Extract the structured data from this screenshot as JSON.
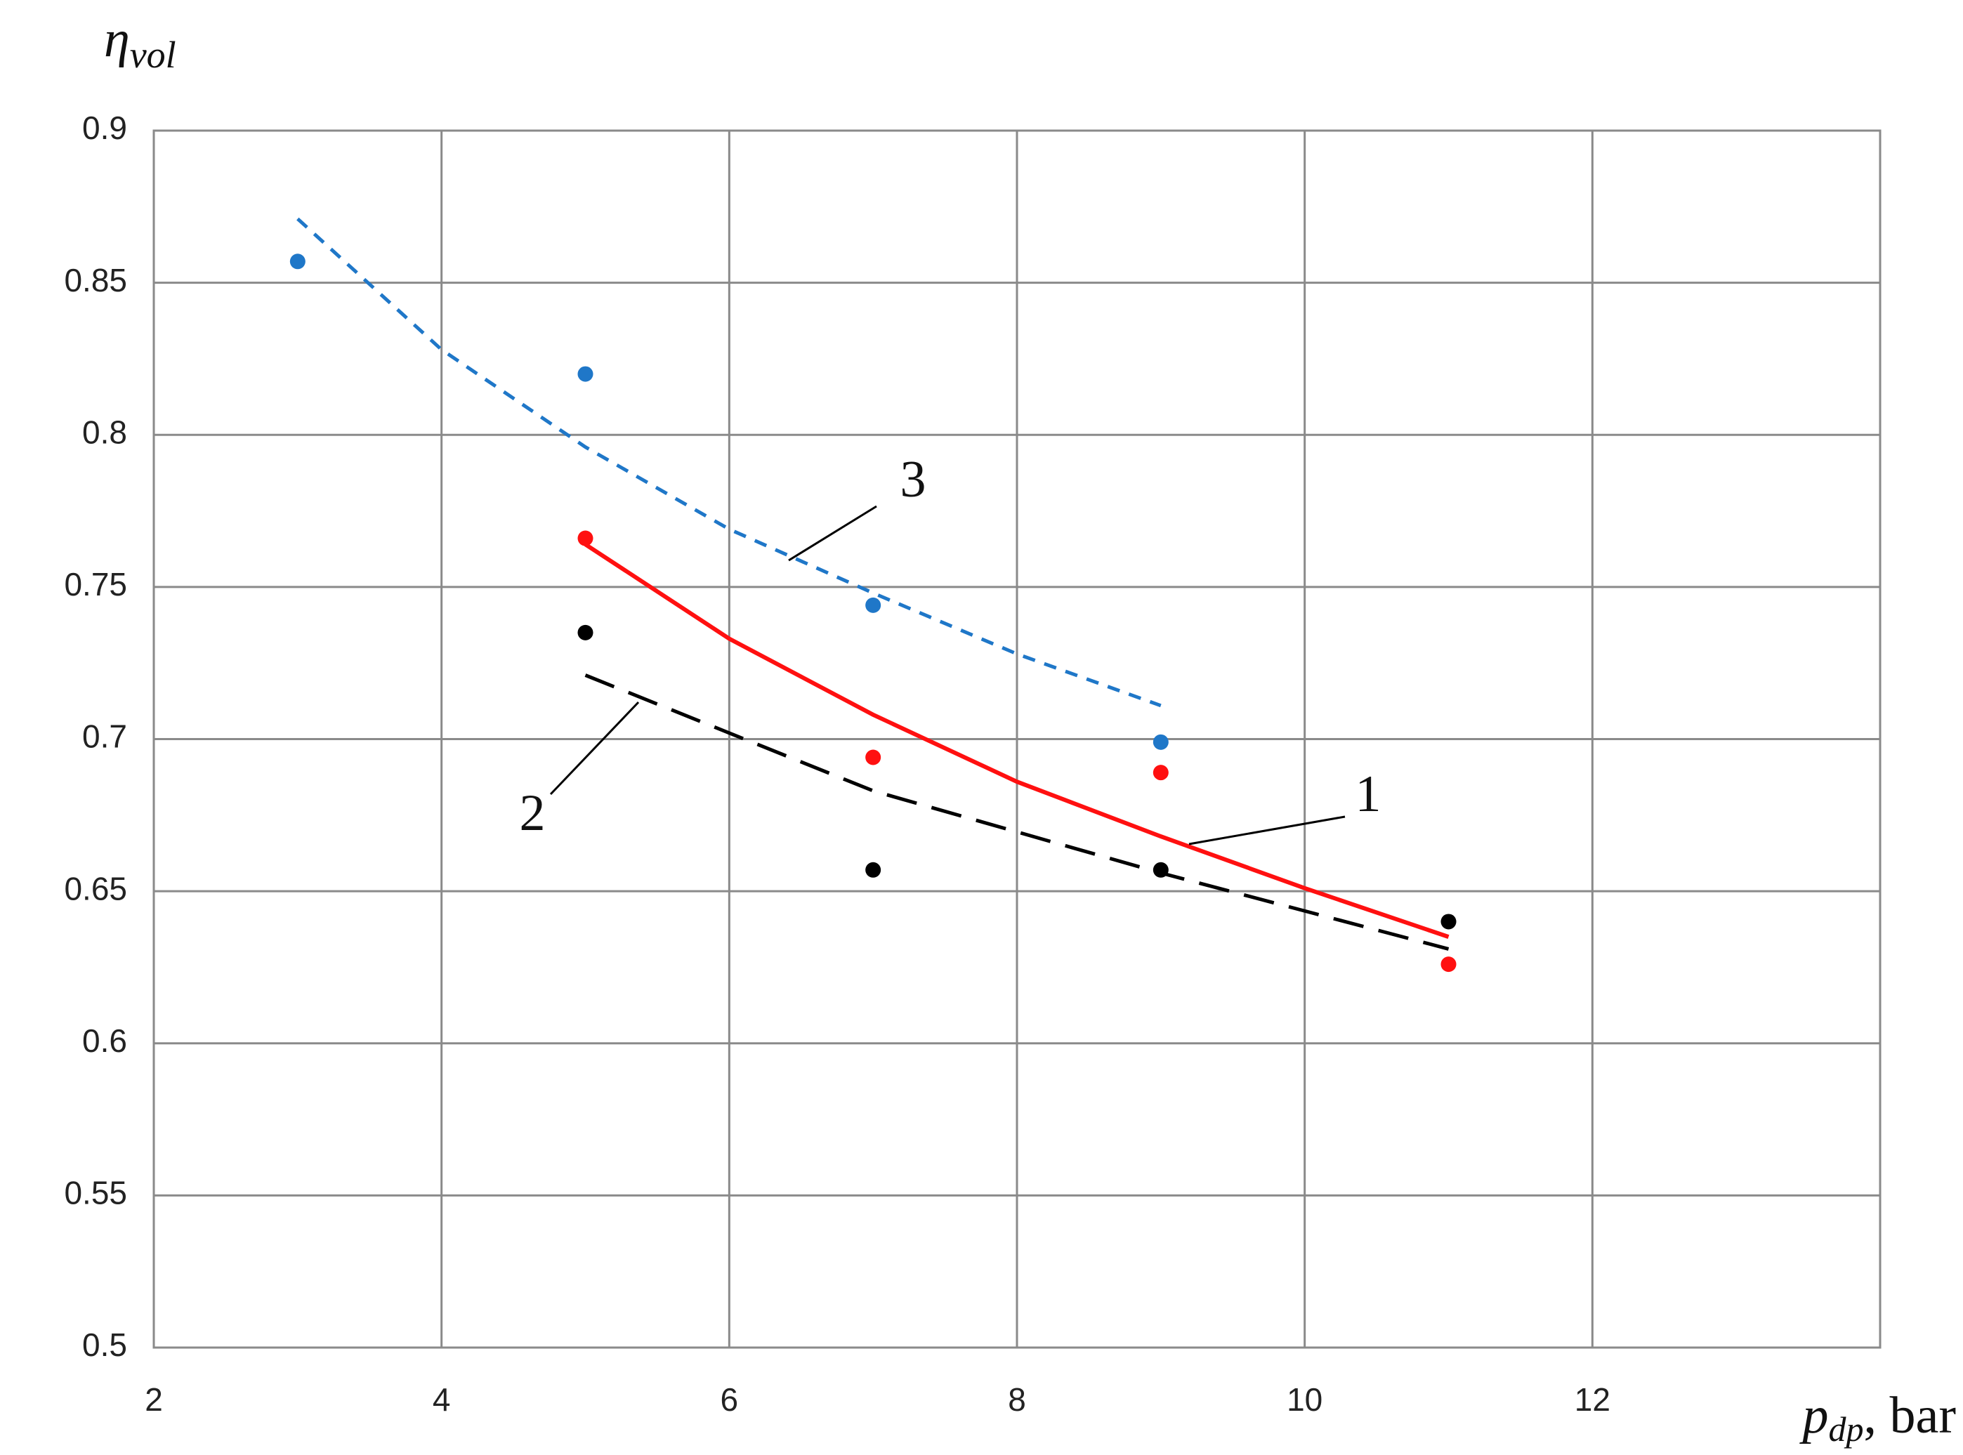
{
  "chart_data": {
    "type": "scatter",
    "ylabel": {
      "symbol": "η",
      "subscript": "vol"
    },
    "xlabel": {
      "symbol": "p",
      "subscript": "dp",
      "suffix": ", bar"
    },
    "xlim": [
      2,
      14
    ],
    "xticks": [
      2,
      4,
      6,
      8,
      10,
      12
    ],
    "ylim": [
      0.5,
      0.9
    ],
    "yticks": [
      0.5,
      0.55,
      0.6,
      0.65,
      0.7,
      0.75,
      0.8,
      0.85,
      0.9
    ],
    "grid": true,
    "series": [
      {
        "color": "#1f77c8",
        "x": [
          3,
          5,
          7,
          9
        ],
        "values": [
          0.857,
          0.82,
          0.744,
          0.699
        ]
      },
      {
        "color": "#ff1010",
        "x": [
          5,
          7,
          9,
          11
        ],
        "values": [
          0.766,
          0.694,
          0.689,
          0.626
        ]
      },
      {
        "color": "#000000",
        "x": [
          5,
          7,
          9,
          11
        ],
        "values": [
          0.735,
          0.657,
          0.657,
          0.64
        ]
      }
    ],
    "trend_lines": [
      {
        "label": "1",
        "color": "#ff1010",
        "dash": "solid",
        "x": [
          5,
          6,
          7,
          8,
          9,
          10,
          11
        ],
        "values": [
          0.764,
          0.733,
          0.708,
          0.686,
          0.668,
          0.651,
          0.635
        ]
      },
      {
        "label": "2",
        "color": "#000000",
        "dash": "long",
        "x": [
          5,
          7,
          9,
          11
        ],
        "values": [
          0.721,
          0.683,
          0.656,
          0.631
        ]
      },
      {
        "label": "3",
        "color": "#1f77c8",
        "dash": "short",
        "x": [
          3,
          4,
          5,
          6,
          7,
          8,
          9
        ],
        "values": [
          0.871,
          0.828,
          0.796,
          0.769,
          0.748,
          0.728,
          0.711
        ]
      }
    ]
  }
}
